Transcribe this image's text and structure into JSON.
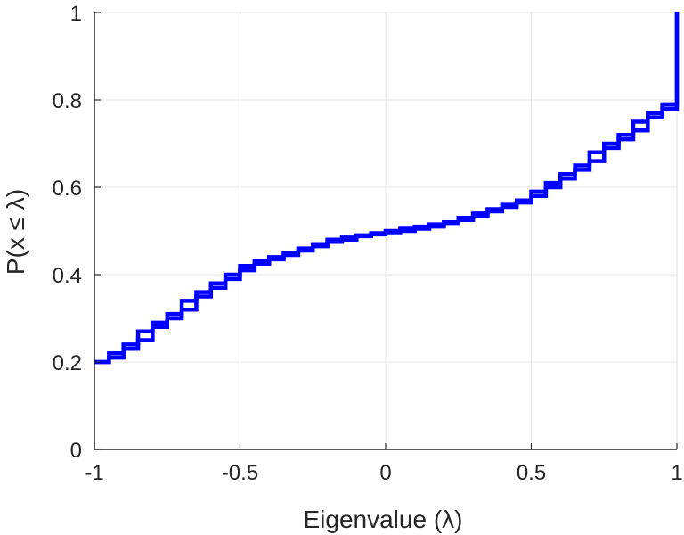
{
  "chart_data": {
    "type": "line",
    "style": "stairs",
    "xlabel": "Eigenvalue (λ)",
    "ylabel": "P(x ≤ λ)",
    "xlim": [
      -1,
      1
    ],
    "ylim": [
      0,
      1
    ],
    "xticks": [
      -1,
      -0.5,
      0,
      0.5,
      1
    ],
    "xtick_labels": [
      "-1",
      "-0.5",
      "0",
      "0.5",
      "1"
    ],
    "yticks": [
      0,
      0.2,
      0.4,
      0.6,
      0.8,
      1
    ],
    "ytick_labels": [
      "0",
      "0.2",
      "0.4",
      "0.6",
      "0.8",
      "1"
    ],
    "grid": true,
    "color": "#0000ff",
    "series": [
      {
        "x": [
          -1.0,
          -0.95,
          -0.9,
          -0.85,
          -0.8,
          -0.75,
          -0.7,
          -0.65,
          -0.6,
          -0.55,
          -0.5,
          -0.45,
          -0.4,
          -0.35,
          -0.3,
          -0.25,
          -0.2,
          -0.15,
          -0.1,
          -0.05,
          0.0,
          0.05,
          0.1,
          0.15,
          0.2,
          0.25,
          0.3,
          0.35,
          0.4,
          0.45,
          0.5,
          0.55,
          0.6,
          0.65,
          0.7,
          0.75,
          0.8,
          0.85,
          0.9,
          0.95,
          1.0
        ],
        "y": [
          0.2,
          0.22,
          0.24,
          0.27,
          0.29,
          0.31,
          0.34,
          0.36,
          0.38,
          0.4,
          0.42,
          0.43,
          0.44,
          0.45,
          0.46,
          0.47,
          0.48,
          0.485,
          0.49,
          0.495,
          0.5,
          0.505,
          0.51,
          0.515,
          0.52,
          0.53,
          0.54,
          0.55,
          0.56,
          0.57,
          0.59,
          0.61,
          0.63,
          0.65,
          0.68,
          0.7,
          0.72,
          0.75,
          0.77,
          0.79,
          1.0
        ]
      },
      {
        "x": [
          -1.0,
          -0.95,
          -0.9,
          -0.85,
          -0.8,
          -0.75,
          -0.7,
          -0.65,
          -0.6,
          -0.55,
          -0.5,
          -0.45,
          -0.4,
          -0.35,
          -0.3,
          -0.25,
          -0.2,
          -0.15,
          -0.1,
          -0.05,
          0.0,
          0.05,
          0.1,
          0.15,
          0.2,
          0.25,
          0.3,
          0.35,
          0.4,
          0.45,
          0.5,
          0.55,
          0.6,
          0.65,
          0.7,
          0.75,
          0.8,
          0.85,
          0.9,
          0.95,
          1.0
        ],
        "y": [
          0.2,
          0.21,
          0.23,
          0.25,
          0.28,
          0.3,
          0.32,
          0.35,
          0.37,
          0.39,
          0.41,
          0.425,
          0.435,
          0.445,
          0.455,
          0.465,
          0.475,
          0.48,
          0.488,
          0.492,
          0.497,
          0.5,
          0.505,
          0.51,
          0.518,
          0.525,
          0.535,
          0.545,
          0.555,
          0.565,
          0.58,
          0.6,
          0.62,
          0.64,
          0.66,
          0.69,
          0.71,
          0.73,
          0.76,
          0.78,
          1.0
        ]
      }
    ]
  }
}
